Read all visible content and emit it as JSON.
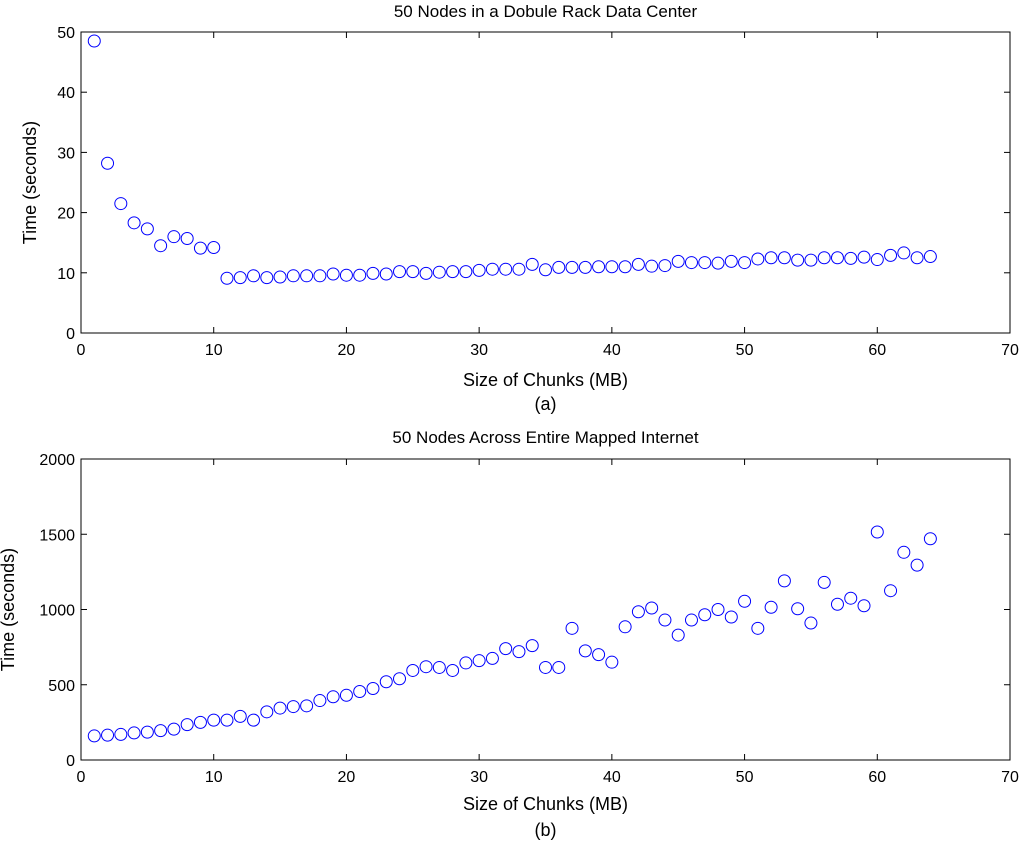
{
  "chart_data": [
    {
      "type": "scatter",
      "title": "50 Nodes in a Dobule Rack Data Center",
      "xlabel": "Size of Chunks (MB)",
      "ylabel": "Time (seconds)",
      "caption": "(a)",
      "xlim": [
        0,
        70
      ],
      "ylim": [
        0,
        50
      ],
      "xticks": [
        0,
        10,
        20,
        30,
        40,
        50,
        60,
        70
      ],
      "yticks": [
        0,
        10,
        20,
        30,
        40,
        50
      ],
      "grid": false,
      "marker": "circle-open",
      "color": "#0000ff",
      "x": [
        1,
        2,
        3,
        4,
        5,
        6,
        7,
        8,
        9,
        10,
        11,
        12,
        13,
        14,
        15,
        16,
        17,
        18,
        19,
        20,
        21,
        22,
        23,
        24,
        25,
        26,
        27,
        28,
        29,
        30,
        31,
        32,
        33,
        34,
        35,
        36,
        37,
        38,
        39,
        40,
        41,
        42,
        43,
        44,
        45,
        46,
        47,
        48,
        49,
        50,
        51,
        52,
        53,
        54,
        55,
        56,
        57,
        58,
        59,
        60,
        61,
        62,
        63,
        64
      ],
      "y": [
        48.5,
        28.2,
        21.5,
        18.3,
        17.3,
        14.5,
        16.0,
        15.7,
        14.1,
        14.2,
        9.1,
        9.2,
        9.5,
        9.2,
        9.3,
        9.5,
        9.5,
        9.5,
        9.8,
        9.6,
        9.6,
        9.9,
        9.8,
        10.2,
        10.2,
        9.9,
        10.1,
        10.2,
        10.2,
        10.4,
        10.6,
        10.6,
        10.6,
        11.4,
        10.5,
        10.9,
        10.9,
        10.9,
        11.0,
        11.0,
        11.0,
        11.4,
        11.1,
        11.2,
        11.9,
        11.7,
        11.7,
        11.6,
        11.9,
        11.7,
        12.3,
        12.5,
        12.5,
        12.1,
        12.1,
        12.5,
        12.5,
        12.4,
        12.6,
        12.2,
        12.9,
        13.3,
        12.5,
        12.7
      ]
    },
    {
      "type": "scatter",
      "title": "50 Nodes Across Entire Mapped Internet",
      "xlabel": "Size of Chunks (MB)",
      "ylabel": "Time (seconds)",
      "caption": "(b)",
      "xlim": [
        0,
        70
      ],
      "ylim": [
        0,
        2000
      ],
      "xticks": [
        0,
        10,
        20,
        30,
        40,
        50,
        60,
        70
      ],
      "yticks": [
        0,
        500,
        1000,
        1500,
        2000
      ],
      "grid": false,
      "marker": "circle-open",
      "color": "#0000ff",
      "x": [
        1,
        2,
        3,
        4,
        5,
        6,
        7,
        8,
        9,
        10,
        11,
        12,
        13,
        14,
        15,
        16,
        17,
        18,
        19,
        20,
        21,
        22,
        23,
        24,
        25,
        26,
        27,
        28,
        29,
        30,
        31,
        32,
        33,
        34,
        35,
        36,
        37,
        38,
        39,
        40,
        41,
        42,
        43,
        44,
        45,
        46,
        47,
        48,
        49,
        50,
        51,
        52,
        53,
        54,
        55,
        56,
        57,
        58,
        59,
        60,
        61,
        62,
        63,
        64
      ],
      "y": [
        160,
        165,
        170,
        180,
        185,
        195,
        205,
        235,
        250,
        265,
        265,
        290,
        265,
        320,
        345,
        355,
        360,
        395,
        420,
        430,
        455,
        475,
        520,
        540,
        595,
        620,
        615,
        595,
        645,
        660,
        675,
        740,
        720,
        760,
        615,
        615,
        875,
        725,
        700,
        650,
        885,
        985,
        1010,
        930,
        830,
        930,
        965,
        1000,
        950,
        1055,
        875,
        1015,
        1190,
        1005,
        910,
        1180,
        1035,
        1075,
        1025,
        1515,
        1125,
        1380,
        1295,
        1470
      ]
    }
  ]
}
